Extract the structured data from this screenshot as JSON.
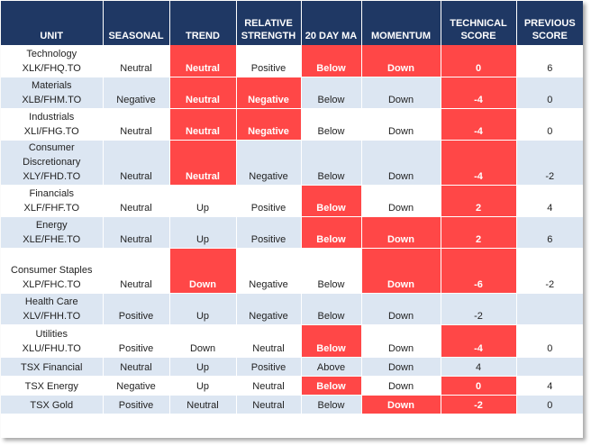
{
  "headers": [
    "UNIT",
    "SEASONAL",
    "TREND",
    "RELATIVE STRENGTH",
    "20 DAY MA",
    "MOMENTUM",
    "TECHNICAL SCORE",
    "PREVIOUS SCORE"
  ],
  "colors": {
    "header_bg": "#1f3864",
    "alt_row": "#dce6f2",
    "highlight": "#ff4747"
  },
  "rows": [
    {
      "unit": [
        "Technology",
        "XLK/FHQ.TO"
      ],
      "seasonal": "Neutral",
      "trend": "Neutral",
      "relative_strength": "Positive",
      "ma20": "Below",
      "momentum": "Down",
      "technical": "0",
      "previous": "6"
    },
    {
      "unit": [
        "Materials",
        "XLB/FHM.TO"
      ],
      "seasonal": "Negative",
      "trend": "Neutral",
      "relative_strength": "Negative",
      "ma20": "Below",
      "momentum": "Down",
      "technical": "-4",
      "previous": "0"
    },
    {
      "unit": [
        "Industrials",
        "XLI/FHG.TO"
      ],
      "seasonal": "Neutral",
      "trend": "Neutral",
      "relative_strength": "Negative",
      "ma20": "Below",
      "momentum": "Down",
      "technical": "-4",
      "previous": "0"
    },
    {
      "unit": [
        "Consumer",
        "Discretionary",
        "XLY/FHD.TO"
      ],
      "seasonal": "Neutral",
      "trend": "Neutral",
      "relative_strength": "Negative",
      "ma20": "Below",
      "momentum": "Down",
      "technical": "-4",
      "previous": "-2"
    },
    {
      "unit": [
        "Financials",
        "XLF/FHF.TO"
      ],
      "seasonal": "Neutral",
      "trend": "Up",
      "relative_strength": "Positive",
      "ma20": "Below",
      "momentum": "Down",
      "technical": "2",
      "previous": "4"
    },
    {
      "unit": [
        "Energy",
        "XLE/FHE.TO"
      ],
      "seasonal": "Neutral",
      "trend": "Up",
      "relative_strength": "Positive",
      "ma20": "Below",
      "momentum": "Down",
      "technical": "2",
      "previous": "6"
    },
    {
      "unit": [
        "Consumer Staples",
        "XLP/FHC.TO"
      ],
      "seasonal": "Neutral",
      "trend": "Down",
      "relative_strength": "Negative",
      "ma20": "Below",
      "momentum": "Down",
      "technical": "-6",
      "previous": "-2"
    },
    {
      "unit": [
        "Health Care",
        "XLV/FHH.TO"
      ],
      "seasonal": "Positive",
      "trend": "Up",
      "relative_strength": "Negative",
      "ma20": "Below",
      "momentum": "Down",
      "technical": "-2",
      "previous": ""
    },
    {
      "unit": [
        "Utilities",
        "XLU/FHU.TO"
      ],
      "seasonal": "Positive",
      "trend": "Down",
      "relative_strength": "Neutral",
      "ma20": "Below",
      "momentum": "Down",
      "technical": "-4",
      "previous": "0"
    },
    {
      "unit": [
        "TSX Financial"
      ],
      "seasonal": "Neutral",
      "trend": "Up",
      "relative_strength": "Positive",
      "ma20": "Above",
      "momentum": "Down",
      "technical": "4",
      "previous": ""
    },
    {
      "unit": [
        "TSX Energy"
      ],
      "seasonal": "Negative",
      "trend": "Up",
      "relative_strength": "Neutral",
      "ma20": "Below",
      "momentum": "Down",
      "technical": "0",
      "previous": "4"
    },
    {
      "unit": [
        "TSX Gold"
      ],
      "seasonal": "Positive",
      "trend": "Neutral",
      "relative_strength": "Neutral",
      "ma20": "Below",
      "momentum": "Down",
      "technical": "-2",
      "previous": "0"
    }
  ]
}
